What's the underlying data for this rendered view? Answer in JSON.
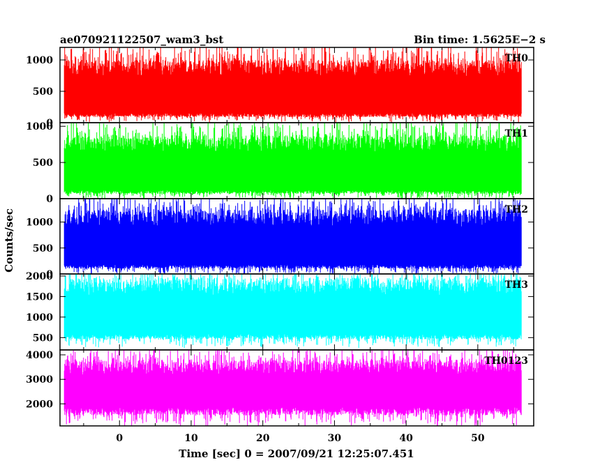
{
  "chart_data": {
    "type": "line",
    "title_left": "ae070921122507_wam3_bst",
    "title_right": "Bin time: 1.5625E−2 s",
    "ylabel": "Counts/sec",
    "xlabel": "Time [sec] 0 = 2007/09/21 12:25:07.451",
    "xlim": [
      -8.3,
      57.8
    ],
    "x_ticks": [
      0,
      10,
      20,
      30,
      40,
      50
    ],
    "x_tick_labels": [
      "0",
      "10",
      "20",
      "30",
      "40",
      "50"
    ],
    "grid": false,
    "panels": [
      {
        "name": "TH0",
        "color": "#ff0000",
        "ylim": [
          0,
          1200
        ],
        "y_ticks": [
          0,
          500,
          1000
        ],
        "y_tick_labels": [
          "0",
          "500",
          "1000"
        ],
        "x_range": [
          -7.7,
          56.1
        ],
        "typical_low": 120,
        "typical_high": 870,
        "peak_low": 20,
        "peak_high": 1200,
        "seed": 11
      },
      {
        "name": "TH1",
        "color": "#00ff00",
        "ylim": [
          0,
          1050
        ],
        "y_ticks": [
          0,
          500,
          1000
        ],
        "y_tick_labels": [
          "0",
          "500",
          "1000"
        ],
        "x_range": [
          -7.7,
          56.1
        ],
        "typical_low": 90,
        "typical_high": 760,
        "peak_low": 10,
        "peak_high": 1040,
        "seed": 23
      },
      {
        "name": "TH2",
        "color": "#0000ff",
        "ylim": [
          0,
          1450
        ],
        "y_ticks": [
          0,
          500,
          1000
        ],
        "y_tick_labels": [
          "0",
          "500",
          "1000"
        ],
        "x_range": [
          -7.7,
          56.1
        ],
        "typical_low": 140,
        "typical_high": 1080,
        "peak_low": 10,
        "peak_high": 1450,
        "seed": 37
      },
      {
        "name": "TH3",
        "color": "#00ffff",
        "ylim": [
          200,
          2050
        ],
        "y_ticks": [
          500,
          1000,
          1500,
          2000
        ],
        "y_tick_labels": [
          "500",
          "1000",
          "1500",
          "2000"
        ],
        "x_range": [
          -7.7,
          56.1
        ],
        "typical_low": 520,
        "typical_high": 1750,
        "peak_low": 300,
        "peak_high": 2050,
        "seed": 53
      },
      {
        "name": "TH0123",
        "color": "#ff00ff",
        "ylim": [
          1100,
          4200
        ],
        "y_ticks": [
          2000,
          3000,
          4000
        ],
        "y_tick_labels": [
          "2000",
          "3000",
          "4000"
        ],
        "x_range": [
          -7.7,
          56.1
        ],
        "typical_low": 1700,
        "typical_high": 3500,
        "peak_low": 1150,
        "peak_high": 4150,
        "seed": 71
      }
    ]
  }
}
